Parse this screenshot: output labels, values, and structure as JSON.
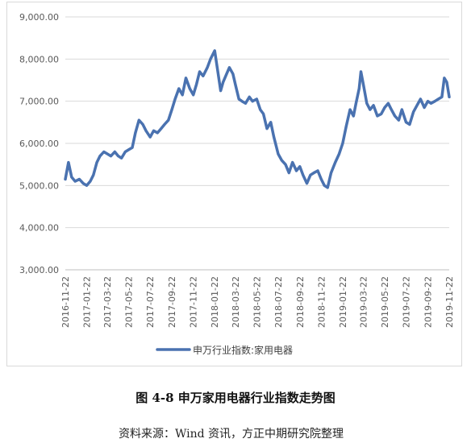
{
  "figure": {
    "caption": "图 4-8  申万家用电器行业指数走势图",
    "source": "资料来源：Wind 资讯，方正中期研究院整理"
  },
  "chart_data": {
    "type": "line",
    "title": "",
    "xlabel": "",
    "ylabel": "",
    "ylim": [
      3000,
      9000
    ],
    "ytick_values": [
      3000,
      4000,
      5000,
      6000,
      7000,
      8000,
      9000
    ],
    "ytick_labels": [
      "3,000.00",
      "4,000.00",
      "5,000.00",
      "6,000.00",
      "7,000.00",
      "8,000.00",
      "9,000.00"
    ],
    "x_tick_labels": [
      "2016-11-22",
      "2017-01-22",
      "2017-03-22",
      "2017-05-22",
      "2017-07-22",
      "2017-09-22",
      "2017-11-22",
      "2018-01-22",
      "2018-03-22",
      "2018-05-22",
      "2018-07-22",
      "2018-09-22",
      "2018-11-22",
      "2019-01-22",
      "2019-03-22",
      "2019-05-22",
      "2019-07-22",
      "2019-09-22",
      "2019-11-22"
    ],
    "grid": true,
    "legend_position": "bottom",
    "series": [
      {
        "name": "申万行业指数:家用电器",
        "color": "#4a72b0",
        "x": [
          "2016-11-22",
          "2016-12-01",
          "2016-12-10",
          "2016-12-20",
          "2017-01-01",
          "2017-01-12",
          "2017-01-22",
          "2017-02-01",
          "2017-02-10",
          "2017-02-20",
          "2017-03-01",
          "2017-03-12",
          "2017-03-22",
          "2017-04-01",
          "2017-04-12",
          "2017-04-22",
          "2017-05-01",
          "2017-05-12",
          "2017-05-22",
          "2017-06-01",
          "2017-06-10",
          "2017-06-20",
          "2017-07-01",
          "2017-07-10",
          "2017-07-22",
          "2017-08-01",
          "2017-08-12",
          "2017-08-22",
          "2017-09-01",
          "2017-09-12",
          "2017-09-22",
          "2017-10-01",
          "2017-10-12",
          "2017-10-22",
          "2017-11-01",
          "2017-11-12",
          "2017-11-22",
          "2017-12-01",
          "2017-12-10",
          "2017-12-20",
          "2018-01-01",
          "2018-01-10",
          "2018-01-22",
          "2018-02-01",
          "2018-02-08",
          "2018-02-15",
          "2018-02-25",
          "2018-03-05",
          "2018-03-15",
          "2018-03-22",
          "2018-04-01",
          "2018-04-10",
          "2018-04-20",
          "2018-05-01",
          "2018-05-10",
          "2018-05-22",
          "2018-06-01",
          "2018-06-10",
          "2018-06-20",
          "2018-07-01",
          "2018-07-10",
          "2018-07-22",
          "2018-08-01",
          "2018-08-12",
          "2018-08-22",
          "2018-09-01",
          "2018-09-12",
          "2018-09-22",
          "2018-10-01",
          "2018-10-12",
          "2018-10-22",
          "2018-11-01",
          "2018-11-12",
          "2018-11-22",
          "2018-12-01",
          "2018-12-10",
          "2018-12-20",
          "2019-01-01",
          "2019-01-12",
          "2019-01-22",
          "2019-02-01",
          "2019-02-12",
          "2019-02-22",
          "2019-03-01",
          "2019-03-10",
          "2019-03-15",
          "2019-03-22",
          "2019-04-01",
          "2019-04-10",
          "2019-04-20",
          "2019-05-01",
          "2019-05-12",
          "2019-05-22",
          "2019-06-01",
          "2019-06-10",
          "2019-06-20",
          "2019-07-01",
          "2019-07-10",
          "2019-07-22",
          "2019-08-01",
          "2019-08-12",
          "2019-08-22",
          "2019-09-01",
          "2019-09-12",
          "2019-09-22",
          "2019-10-01",
          "2019-10-12",
          "2019-10-22",
          "2019-11-01",
          "2019-11-08",
          "2019-11-15",
          "2019-11-22"
        ],
        "values": [
          5150,
          5550,
          5200,
          5100,
          5150,
          5050,
          5000,
          5100,
          5250,
          5550,
          5700,
          5800,
          5750,
          5700,
          5800,
          5700,
          5650,
          5800,
          5850,
          5900,
          6250,
          6550,
          6450,
          6300,
          6150,
          6300,
          6250,
          6350,
          6450,
          6550,
          6800,
          7050,
          7300,
          7150,
          7550,
          7300,
          7150,
          7400,
          7700,
          7600,
          7800,
          8000,
          8200,
          7650,
          7250,
          7450,
          7650,
          7800,
          7650,
          7400,
          7050,
          7000,
          6950,
          7100,
          7000,
          7050,
          6800,
          6700,
          6350,
          6500,
          6150,
          5750,
          5600,
          5500,
          5300,
          5550,
          5350,
          5450,
          5250,
          5050,
          5250,
          5300,
          5350,
          5150,
          5000,
          4950,
          5300,
          5550,
          5750,
          6000,
          6400,
          6800,
          6650,
          6950,
          7300,
          7700,
          7400,
          6950,
          6800,
          6900,
          6650,
          6700,
          6850,
          6950,
          6800,
          6650,
          6550,
          6800,
          6500,
          6450,
          6750,
          6900,
          7050,
          6850,
          7000,
          6950,
          7000,
          7050,
          7100,
          7550,
          7450,
          7100
        ]
      }
    ]
  }
}
